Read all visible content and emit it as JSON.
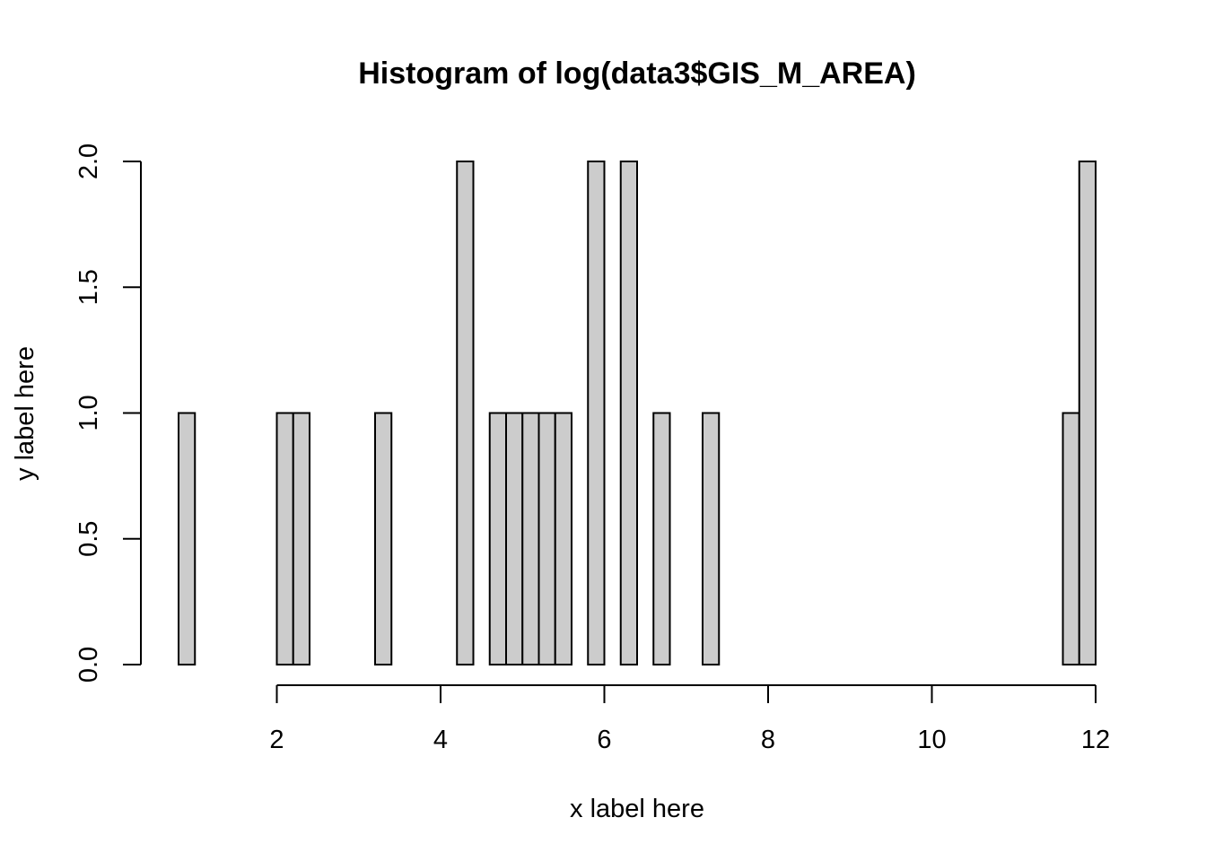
{
  "chart_data": {
    "type": "bar",
    "title": "Histogram of log(data3$GIS_M_AREA)",
    "xlabel": "x label here",
    "ylabel": "y label here",
    "bar_color": "#cccccc",
    "border_color": "#000000",
    "background": "#ffffff",
    "bin_width": 0.2,
    "xlim": [
      0.8,
      12.0
    ],
    "ylim": [
      0,
      2
    ],
    "grid": false,
    "xticks": [
      2,
      4,
      6,
      8,
      10,
      12
    ],
    "xtick_labels": [
      "2",
      "4",
      "6",
      "8",
      "10",
      "12"
    ],
    "yticks": [
      0,
      0.5,
      1,
      1.5,
      2
    ],
    "ytick_labels": [
      "0.0",
      "0.5",
      "1.0",
      "1.5",
      "2.0"
    ],
    "bins": [
      {
        "start": 0.8,
        "end": 1.0,
        "count": 1
      },
      {
        "start": 2.0,
        "end": 2.2,
        "count": 1
      },
      {
        "start": 2.2,
        "end": 2.4,
        "count": 1
      },
      {
        "start": 3.2,
        "end": 3.4,
        "count": 1
      },
      {
        "start": 4.2,
        "end": 4.4,
        "count": 2
      },
      {
        "start": 4.6,
        "end": 4.8,
        "count": 1
      },
      {
        "start": 4.8,
        "end": 5.0,
        "count": 1
      },
      {
        "start": 5.0,
        "end": 5.2,
        "count": 1
      },
      {
        "start": 5.2,
        "end": 5.4,
        "count": 1
      },
      {
        "start": 5.4,
        "end": 5.6,
        "count": 1
      },
      {
        "start": 5.8,
        "end": 6.0,
        "count": 2
      },
      {
        "start": 6.2,
        "end": 6.4,
        "count": 2
      },
      {
        "start": 6.6,
        "end": 6.8,
        "count": 1
      },
      {
        "start": 7.2,
        "end": 7.4,
        "count": 1
      },
      {
        "start": 11.6,
        "end": 11.8,
        "count": 1
      },
      {
        "start": 11.8,
        "end": 12.0,
        "count": 2
      }
    ]
  }
}
